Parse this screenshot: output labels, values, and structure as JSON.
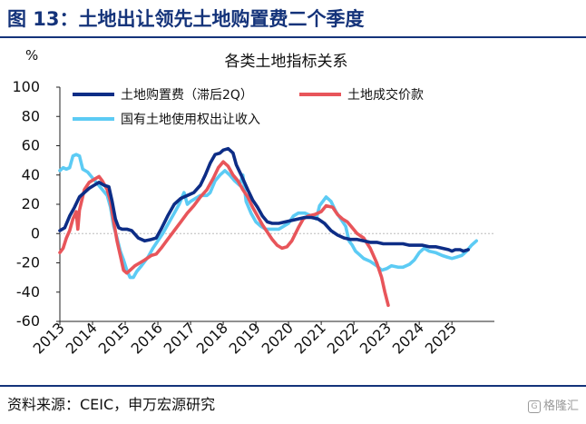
{
  "header": {
    "title": "图 13：土地出让领先土地购置费二个季度"
  },
  "footer": {
    "source": "资料来源：CEIC，申万宏源研究",
    "watermark": "格隆汇"
  },
  "colors": {
    "brand": "#14337a",
    "series1": "#0d2d86",
    "series2": "#e8555a",
    "series3": "#5ccbf4",
    "rule": "#14337a"
  },
  "chart_data": {
    "type": "line",
    "title": "各类土地指标关系",
    "ylabel": "%",
    "xlabel": "",
    "ylim": [
      -60,
      100
    ],
    "xlim": [
      2013.0,
      2026.3
    ],
    "y_ticks": [
      100,
      80,
      60,
      40,
      20,
      0,
      -20,
      -40,
      -60
    ],
    "x_ticks": [
      "2013",
      "2014",
      "2015",
      "2016",
      "2017",
      "2018",
      "2019",
      "2020",
      "2021",
      "2022",
      "2023",
      "2024",
      "2025"
    ],
    "legend_position": "top",
    "grid": false,
    "zero_line": "dotted",
    "series": [
      {
        "name": "土地购置费（滞后2Q）",
        "color": "#0d2d86",
        "points": [
          [
            2013.0,
            2
          ],
          [
            2013.15,
            4
          ],
          [
            2013.3,
            12
          ],
          [
            2013.45,
            18
          ],
          [
            2013.6,
            25
          ],
          [
            2013.75,
            28
          ],
          [
            2013.9,
            31
          ],
          [
            2014.05,
            33
          ],
          [
            2014.2,
            35
          ],
          [
            2014.35,
            33
          ],
          [
            2014.5,
            32
          ],
          [
            2014.6,
            22
          ],
          [
            2014.7,
            10
          ],
          [
            2014.8,
            4
          ],
          [
            2014.9,
            3
          ],
          [
            2015.05,
            3
          ],
          [
            2015.2,
            2
          ],
          [
            2015.4,
            -3
          ],
          [
            2015.6,
            -5
          ],
          [
            2015.8,
            -4
          ],
          [
            2015.95,
            -3
          ],
          [
            2016.1,
            3
          ],
          [
            2016.3,
            12
          ],
          [
            2016.5,
            20
          ],
          [
            2016.7,
            24
          ],
          [
            2016.9,
            26
          ],
          [
            2017.1,
            28
          ],
          [
            2017.3,
            33
          ],
          [
            2017.45,
            40
          ],
          [
            2017.6,
            48
          ],
          [
            2017.75,
            54
          ],
          [
            2017.9,
            55
          ],
          [
            2018.0,
            57
          ],
          [
            2018.15,
            58
          ],
          [
            2018.3,
            55
          ],
          [
            2018.4,
            47
          ],
          [
            2018.55,
            40
          ],
          [
            2018.75,
            30
          ],
          [
            2018.9,
            23
          ],
          [
            2019.05,
            18
          ],
          [
            2019.2,
            12
          ],
          [
            2019.35,
            8
          ],
          [
            2019.5,
            7
          ],
          [
            2019.7,
            7
          ],
          [
            2019.9,
            8
          ],
          [
            2020.1,
            9
          ],
          [
            2020.3,
            10
          ],
          [
            2020.5,
            11
          ],
          [
            2020.7,
            11
          ],
          [
            2020.9,
            10
          ],
          [
            2021.1,
            7
          ],
          [
            2021.3,
            2
          ],
          [
            2021.5,
            -1
          ],
          [
            2021.7,
            -3
          ],
          [
            2021.9,
            -4
          ],
          [
            2022.1,
            -4
          ],
          [
            2022.3,
            -5
          ],
          [
            2022.5,
            -6
          ],
          [
            2022.7,
            -6
          ],
          [
            2022.9,
            -7
          ],
          [
            2023.1,
            -7
          ],
          [
            2023.3,
            -7
          ],
          [
            2023.5,
            -7
          ],
          [
            2023.7,
            -8
          ],
          [
            2023.9,
            -8
          ],
          [
            2024.1,
            -8
          ],
          [
            2024.3,
            -9
          ],
          [
            2024.5,
            -9
          ],
          [
            2024.7,
            -10
          ],
          [
            2024.9,
            -11
          ],
          [
            2025.0,
            -12
          ],
          [
            2025.1,
            -11
          ],
          [
            2025.25,
            -11
          ],
          [
            2025.35,
            -12
          ],
          [
            2025.5,
            -11
          ]
        ]
      },
      {
        "name": "土地成交价款",
        "color": "#e8555a",
        "points": [
          [
            2013.0,
            -13
          ],
          [
            2013.1,
            -10
          ],
          [
            2013.2,
            -3
          ],
          [
            2013.3,
            2
          ],
          [
            2013.4,
            10
          ],
          [
            2013.5,
            15
          ],
          [
            2013.55,
            3
          ],
          [
            2013.6,
            16
          ],
          [
            2013.75,
            30
          ],
          [
            2013.9,
            35
          ],
          [
            2014.05,
            37
          ],
          [
            2014.2,
            39
          ],
          [
            2014.3,
            36
          ],
          [
            2014.45,
            30
          ],
          [
            2014.55,
            22
          ],
          [
            2014.65,
            8
          ],
          [
            2014.75,
            -5
          ],
          [
            2014.85,
            -15
          ],
          [
            2014.95,
            -25
          ],
          [
            2015.05,
            -27
          ],
          [
            2015.15,
            -25
          ],
          [
            2015.3,
            -22
          ],
          [
            2015.45,
            -20
          ],
          [
            2015.6,
            -18
          ],
          [
            2015.8,
            -15
          ],
          [
            2015.95,
            -14
          ],
          [
            2016.1,
            -10
          ],
          [
            2016.3,
            -4
          ],
          [
            2016.5,
            2
          ],
          [
            2016.7,
            8
          ],
          [
            2016.9,
            14
          ],
          [
            2017.1,
            19
          ],
          [
            2017.3,
            25
          ],
          [
            2017.5,
            30
          ],
          [
            2017.7,
            38
          ],
          [
            2017.85,
            45
          ],
          [
            2018.0,
            49
          ],
          [
            2018.15,
            46
          ],
          [
            2018.3,
            40
          ],
          [
            2018.45,
            36
          ],
          [
            2018.6,
            30
          ],
          [
            2018.75,
            25
          ],
          [
            2018.9,
            18
          ],
          [
            2019.05,
            12
          ],
          [
            2019.2,
            6
          ],
          [
            2019.35,
            1
          ],
          [
            2019.5,
            -4
          ],
          [
            2019.65,
            -8
          ],
          [
            2019.8,
            -10
          ],
          [
            2019.95,
            -9
          ],
          [
            2020.1,
            -5
          ],
          [
            2020.3,
            4
          ],
          [
            2020.45,
            10
          ],
          [
            2020.6,
            12
          ],
          [
            2020.8,
            13
          ],
          [
            2021.0,
            15
          ],
          [
            2021.15,
            19
          ],
          [
            2021.35,
            18
          ],
          [
            2021.5,
            13
          ],
          [
            2021.65,
            10
          ],
          [
            2021.8,
            8
          ],
          [
            2021.95,
            4
          ],
          [
            2022.1,
            0
          ],
          [
            2022.3,
            -3
          ],
          [
            2022.5,
            -10
          ],
          [
            2022.7,
            -20
          ],
          [
            2022.85,
            -30
          ],
          [
            2022.95,
            -40
          ],
          [
            2023.05,
            -49
          ]
        ]
      },
      {
        "name": "国有土地使用权出让收入",
        "color": "#5ccbf4",
        "points": [
          [
            2013.0,
            43
          ],
          [
            2013.1,
            45
          ],
          [
            2013.2,
            44
          ],
          [
            2013.3,
            45
          ],
          [
            2013.4,
            53
          ],
          [
            2013.5,
            54
          ],
          [
            2013.6,
            53
          ],
          [
            2013.7,
            44
          ],
          [
            2013.85,
            42
          ],
          [
            2014.0,
            38
          ],
          [
            2014.15,
            34
          ],
          [
            2014.3,
            30
          ],
          [
            2014.45,
            26
          ],
          [
            2014.55,
            18
          ],
          [
            2014.65,
            5
          ],
          [
            2014.75,
            -3
          ],
          [
            2014.85,
            -12
          ],
          [
            2014.95,
            -18
          ],
          [
            2015.05,
            -25
          ],
          [
            2015.15,
            -30
          ],
          [
            2015.25,
            -30
          ],
          [
            2015.35,
            -26
          ],
          [
            2015.5,
            -22
          ],
          [
            2015.7,
            -16
          ],
          [
            2015.85,
            -10
          ],
          [
            2016.0,
            -5
          ],
          [
            2016.15,
            0
          ],
          [
            2016.3,
            6
          ],
          [
            2016.5,
            14
          ],
          [
            2016.65,
            20
          ],
          [
            2016.8,
            28
          ],
          [
            2016.9,
            20
          ],
          [
            2017.0,
            22
          ],
          [
            2017.15,
            24
          ],
          [
            2017.3,
            26
          ],
          [
            2017.5,
            26
          ],
          [
            2017.6,
            28
          ],
          [
            2017.75,
            36
          ],
          [
            2017.9,
            40
          ],
          [
            2018.05,
            43
          ],
          [
            2018.2,
            40
          ],
          [
            2018.35,
            36
          ],
          [
            2018.5,
            33
          ],
          [
            2018.6,
            40
          ],
          [
            2018.7,
            22
          ],
          [
            2018.85,
            14
          ],
          [
            2019.0,
            8
          ],
          [
            2019.15,
            5
          ],
          [
            2019.3,
            3
          ],
          [
            2019.5,
            3
          ],
          [
            2019.7,
            3
          ],
          [
            2019.85,
            5
          ],
          [
            2020.0,
            7
          ],
          [
            2020.15,
            12
          ],
          [
            2020.3,
            14
          ],
          [
            2020.5,
            14
          ],
          [
            2020.7,
            12
          ],
          [
            2020.85,
            10
          ],
          [
            2020.95,
            19
          ],
          [
            2021.05,
            22
          ],
          [
            2021.15,
            25
          ],
          [
            2021.3,
            22
          ],
          [
            2021.45,
            15
          ],
          [
            2021.6,
            10
          ],
          [
            2021.75,
            5
          ],
          [
            2021.85,
            -5
          ],
          [
            2021.95,
            -8
          ],
          [
            2022.05,
            -12
          ],
          [
            2022.15,
            -14
          ],
          [
            2022.3,
            -17
          ],
          [
            2022.5,
            -19
          ],
          [
            2022.7,
            -22
          ],
          [
            2022.85,
            -25
          ],
          [
            2023.0,
            -24
          ],
          [
            2023.15,
            -22
          ],
          [
            2023.35,
            -23
          ],
          [
            2023.5,
            -23
          ],
          [
            2023.7,
            -21
          ],
          [
            2023.85,
            -18
          ],
          [
            2024.0,
            -13
          ],
          [
            2024.15,
            -10
          ],
          [
            2024.3,
            -12
          ],
          [
            2024.5,
            -13
          ],
          [
            2024.7,
            -15
          ],
          [
            2024.85,
            -16
          ],
          [
            2025.0,
            -17
          ],
          [
            2025.15,
            -16
          ],
          [
            2025.3,
            -15
          ],
          [
            2025.45,
            -12
          ],
          [
            2025.6,
            -8
          ],
          [
            2025.75,
            -5
          ]
        ]
      }
    ]
  }
}
